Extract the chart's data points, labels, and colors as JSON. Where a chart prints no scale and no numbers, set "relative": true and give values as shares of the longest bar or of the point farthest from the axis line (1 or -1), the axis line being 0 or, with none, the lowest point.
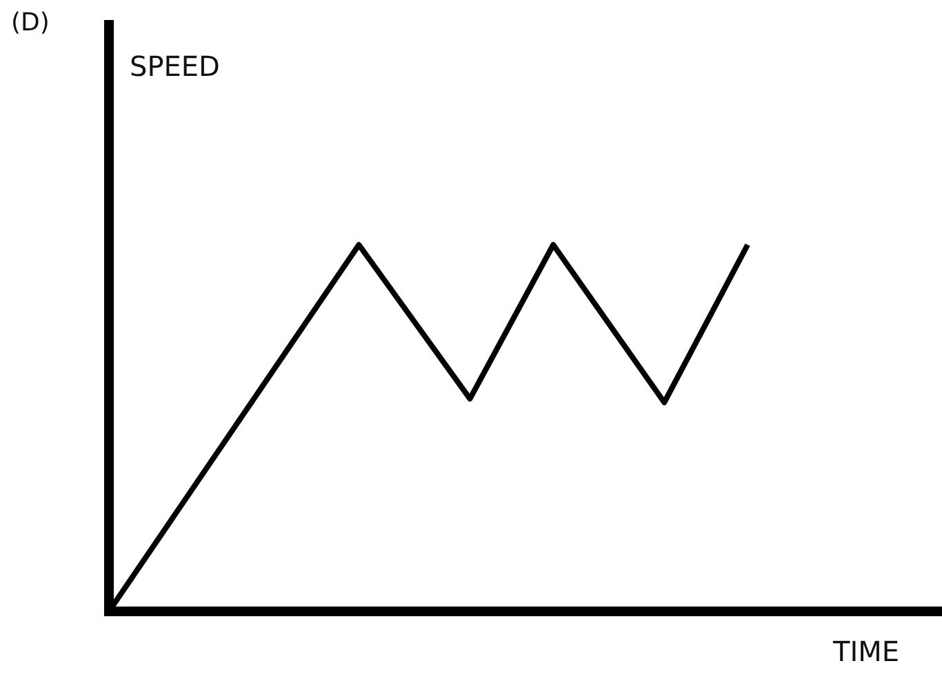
{
  "chart_data": {
    "type": "line",
    "title": "(D)",
    "annotations": [
      "SPEED"
    ],
    "xlabel": "TIME",
    "relative": true,
    "grid": false,
    "legend": false,
    "marker": "none",
    "line_style": "solid",
    "categories": [
      null,
      null,
      null,
      null,
      null,
      null,
      null,
      null,
      null,
      null,
      null,
      null,
      null,
      null,
      null,
      null,
      null,
      null,
      null,
      null,
      null,
      null,
      null,
      null,
      null,
      null,
      null,
      null,
      null,
      null,
      null
    ],
    "series": [
      {
        "color": "#000000",
        "values": [
          0,
          null,
          null,
          null,
          null,
          null,
          null,
          null,
          null,
          1,
          null,
          null,
          null,
          0.58,
          null,
          null,
          1,
          null,
          null,
          null,
          0.57,
          null,
          null,
          1,
          null,
          null,
          null,
          null,
          null,
          null,
          null
        ]
      }
    ]
  }
}
